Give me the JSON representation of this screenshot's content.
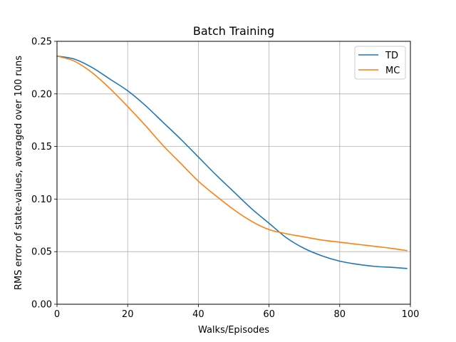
{
  "chart_data": {
    "type": "line",
    "title": "Batch Training",
    "xlabel": "Walks/Episodes",
    "ylabel": "RMS error of state-values, averaged over 100 runs",
    "xlim": [
      0,
      100
    ],
    "ylim": [
      0.0,
      0.25
    ],
    "xticks": [
      0,
      20,
      40,
      60,
      80,
      100
    ],
    "xtick_labels": [
      "0",
      "20",
      "40",
      "60",
      "80",
      "100"
    ],
    "yticks": [
      0.0,
      0.05,
      0.1,
      0.15,
      0.2,
      0.25
    ],
    "ytick_labels": [
      "0.00",
      "0.05",
      "0.10",
      "0.15",
      "0.20",
      "0.25"
    ],
    "grid": true,
    "legend_position": "top-right",
    "x": [
      0,
      5,
      10,
      15,
      20,
      25,
      30,
      35,
      40,
      45,
      50,
      55,
      60,
      65,
      70,
      75,
      80,
      85,
      90,
      95,
      99
    ],
    "series": [
      {
        "name": "TD",
        "color": "#1f77b4",
        "values": [
          0.236,
          0.233,
          0.225,
          0.214,
          0.203,
          0.189,
          0.173,
          0.157,
          0.14,
          0.123,
          0.107,
          0.091,
          0.077,
          0.063,
          0.053,
          0.046,
          0.041,
          0.038,
          0.036,
          0.035,
          0.034
        ]
      },
      {
        "name": "MC",
        "color": "#ff7f0e",
        "values": [
          0.236,
          0.231,
          0.22,
          0.205,
          0.188,
          0.17,
          0.151,
          0.134,
          0.117,
          0.103,
          0.09,
          0.079,
          0.071,
          0.067,
          0.064,
          0.061,
          0.059,
          0.057,
          0.055,
          0.053,
          0.051
        ]
      }
    ]
  }
}
